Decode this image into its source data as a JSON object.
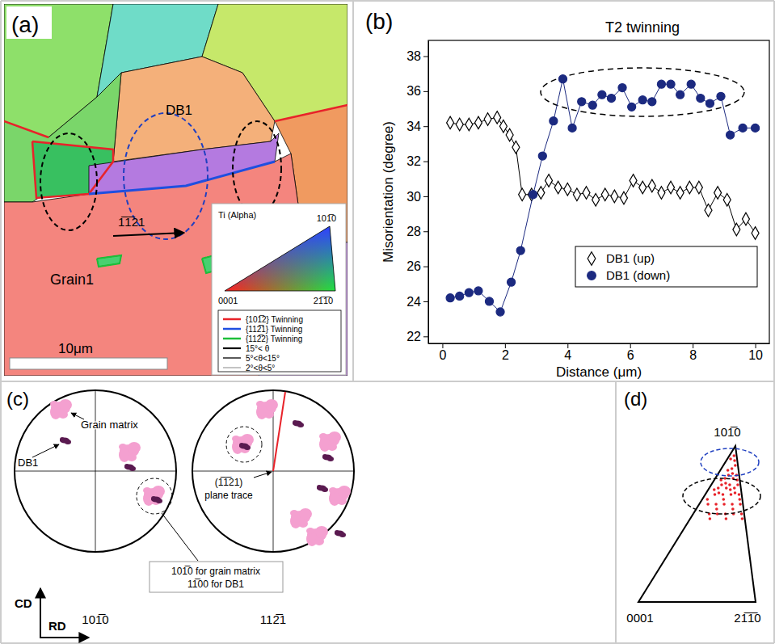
{
  "chart_data": {
    "type": "line",
    "panel_label": "(b)",
    "annotations": [
      "T2 twinning"
    ],
    "x_label": "Distance (μm)",
    "y_label": "Misorientation (degree)",
    "xlim": [
      -0.45,
      10.45
    ],
    "xticks": [
      0,
      2,
      4,
      6,
      8,
      10
    ],
    "ylim": [
      21.6,
      38.9
    ],
    "yticks": [
      22,
      24,
      26,
      28,
      30,
      32,
      34,
      36,
      38
    ],
    "legend": "lower right",
    "series": [
      {
        "name": "DB1 (up)",
        "color": "#000000",
        "marker": "open-diamond",
        "x": [
          0.25,
          0.55,
          0.85,
          1.15,
          1.45,
          1.75,
          1.95,
          2.15,
          2.35,
          2.55,
          2.85,
          3.15,
          3.4,
          3.7,
          4.0,
          4.3,
          4.6,
          4.9,
          5.2,
          5.5,
          5.8,
          6.1,
          6.4,
          6.7,
          7.0,
          7.3,
          7.6,
          7.9,
          8.2,
          8.5,
          8.8,
          9.1,
          9.4,
          9.7,
          10.0
        ],
        "values": [
          34.2,
          34.1,
          34.1,
          34.2,
          34.4,
          34.5,
          34.0,
          33.5,
          32.8,
          30.1,
          30.1,
          30.2,
          30.9,
          30.5,
          30.4,
          30.1,
          30.2,
          29.8,
          30.1,
          30.0,
          29.9,
          30.9,
          30.5,
          30.6,
          30.2,
          30.5,
          30.2,
          30.5,
          30.5,
          29.2,
          30.2,
          29.8,
          28.1,
          28.7,
          27.9
        ]
      },
      {
        "name": "DB1 (down)",
        "color": "#1c2a80",
        "marker": "circle",
        "x": [
          0.25,
          0.55,
          0.85,
          1.15,
          1.5,
          1.85,
          2.2,
          2.5,
          2.9,
          3.2,
          3.55,
          3.85,
          4.15,
          4.45,
          4.8,
          5.1,
          5.4,
          5.75,
          6.05,
          6.4,
          6.7,
          7.0,
          7.3,
          7.6,
          7.95,
          8.25,
          8.55,
          8.9,
          9.2,
          9.6,
          10.0
        ],
        "values": [
          24.2,
          24.3,
          24.5,
          24.6,
          24.0,
          23.4,
          25.1,
          26.9,
          30.1,
          32.3,
          34.3,
          36.7,
          33.9,
          35.4,
          35.2,
          35.8,
          35.6,
          36.2,
          35.1,
          35.5,
          35.4,
          36.4,
          36.4,
          35.8,
          36.4,
          35.6,
          35.3,
          35.7,
          33.5,
          33.9,
          33.9
        ]
      }
    ]
  },
  "figure": {
    "panel_a": {
      "label": "(a)",
      "regions": [
        "DB1",
        "Grain1"
      ],
      "direction": "1̅1̅21",
      "scale_bar": "10μm",
      "legend": {
        "title": "Ti (Alpha)",
        "corners": [
          "101̅0",
          "0001",
          "21̅1̅0"
        ],
        "boundaries": [
          {
            "label": "{101̅2} Twinning",
            "color": "#e8232a"
          },
          {
            "label": "{112̅1} Twinning",
            "color": "#1f4fe0"
          },
          {
            "label": "{112̅2} Twinning",
            "color": "#1dbf3a"
          },
          {
            "label": "15°< θ",
            "color": "#000000"
          },
          {
            "label": "5°<θ<15°",
            "color": "#000000"
          },
          {
            "label": "2°<θ<5°",
            "color": "#555555"
          }
        ]
      }
    },
    "panel_c": {
      "label": "(c)",
      "pole_figures": [
        "101̅0",
        "112̅1"
      ],
      "callouts": {
        "db1": "DB1",
        "matrix": "Grain matrix",
        "plane_trace": [
          "(1̅1̅21)",
          "plane trace"
        ],
        "note": [
          "101̅0 for grain matrix",
          "11̅00 for DB1"
        ]
      },
      "axes": [
        "CD",
        "RD"
      ],
      "colors": {
        "matrix": "#f4a0d0",
        "db1": "#5a1a50"
      },
      "trace_color": "#e8232a"
    },
    "panel_d": {
      "label": "(d)",
      "corners": [
        "101̅0",
        "0001",
        "21̅1̅0"
      ],
      "color": "#e8232a"
    }
  }
}
